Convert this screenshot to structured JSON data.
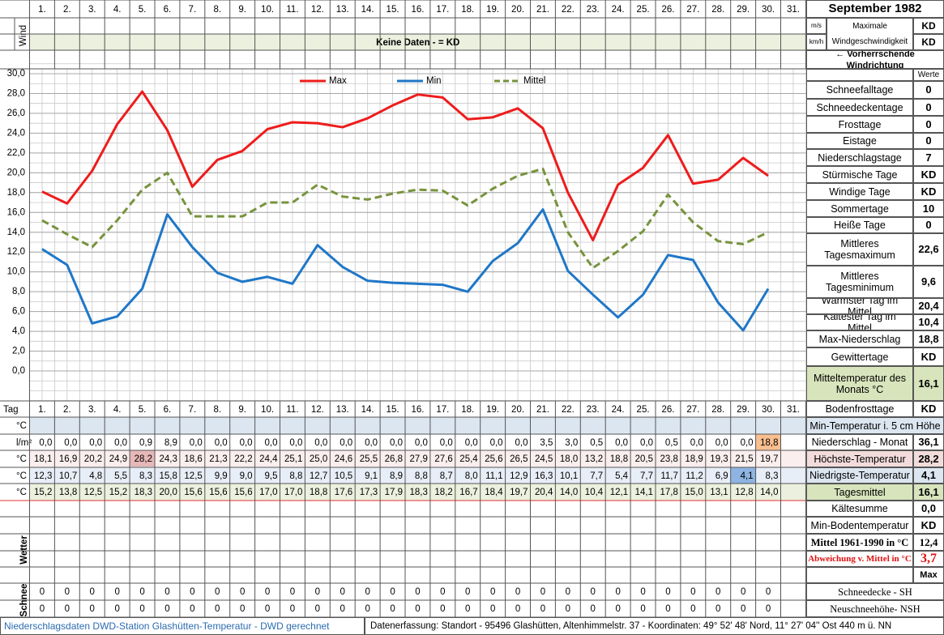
{
  "header": {
    "month": "September 1982"
  },
  "wind": {
    "label": "Wind",
    "no_data": "Keine Daten -  = KD",
    "unit_ms": "m/s",
    "unit_kmh": "km/h",
    "max_label_1": "Maximale",
    "max_label_2": "Windgeschwindigkeit",
    "max_ms": "KD",
    "max_kmh": "KD",
    "direction": "← Vorherrschende Windrichtung"
  },
  "chart_data": {
    "type": "line",
    "categories": [
      "1.",
      "2.",
      "3.",
      "4.",
      "5.",
      "6.",
      "7.",
      "8.",
      "9.",
      "10.",
      "11.",
      "12.",
      "13.",
      "14.",
      "15.",
      "16.",
      "17.",
      "18.",
      "19.",
      "20.",
      "21.",
      "22.",
      "23.",
      "24.",
      "25.",
      "26.",
      "27.",
      "28.",
      "29.",
      "30.",
      "31."
    ],
    "series": [
      {
        "name": "Max",
        "color": "#ee1c1c",
        "dashed": false,
        "values": [
          18.1,
          16.9,
          20.2,
          24.9,
          28.2,
          24.3,
          18.6,
          21.3,
          22.2,
          24.4,
          25.1,
          25.0,
          24.6,
          25.5,
          26.8,
          27.9,
          27.6,
          25.4,
          25.6,
          26.5,
          24.5,
          18.0,
          13.2,
          18.8,
          20.5,
          23.8,
          18.9,
          19.3,
          21.5,
          19.7,
          null
        ],
        "value_labels": [
          "18,1",
          "16,9",
          "20,2",
          "24,9",
          "28,2",
          "24,3",
          "18,6",
          "21,3",
          "22,2",
          "24,4",
          "25,1",
          "25,0",
          "24,6",
          "25,5",
          "26,8",
          "27,9",
          "27,6",
          "25,4",
          "25,6",
          "26,5",
          "24,5",
          "18,0",
          "13,2",
          "18,8",
          "20,5",
          "23,8",
          "18,9",
          "19,3",
          "21,5",
          "19,7",
          null
        ]
      },
      {
        "name": "Min",
        "color": "#1f77c8",
        "dashed": false,
        "values": [
          12.3,
          10.7,
          4.8,
          5.5,
          8.3,
          15.8,
          12.5,
          9.9,
          9.0,
          9.5,
          8.8,
          12.7,
          10.5,
          9.1,
          8.9,
          8.8,
          8.7,
          8.0,
          11.1,
          12.9,
          16.3,
          10.1,
          7.7,
          5.4,
          7.7,
          11.7,
          11.2,
          6.9,
          4.1,
          8.3,
          null
        ],
        "value_labels": [
          "12,3",
          "10,7",
          "4,8",
          "5,5",
          "8,3",
          "15,8",
          "12,5",
          "9,9",
          "9,0",
          "9,5",
          "8,8",
          "12,7",
          "10,5",
          "9,1",
          "8,9",
          "8,8",
          "8,7",
          "8,0",
          "11,1",
          "12,9",
          "16,3",
          "10,1",
          "7,7",
          "5,4",
          "7,7",
          "11,7",
          "11,2",
          "6,9",
          "4,1",
          "8,3",
          null
        ]
      },
      {
        "name": "Mittel",
        "color": "#77933c",
        "dashed": true,
        "values": [
          15.2,
          13.8,
          12.5,
          15.2,
          18.3,
          20.0,
          15.6,
          15.6,
          15.6,
          17.0,
          17.0,
          18.8,
          17.6,
          17.3,
          17.9,
          18.3,
          18.2,
          16.7,
          18.4,
          19.7,
          20.4,
          14.0,
          10.4,
          12.1,
          14.1,
          17.8,
          15.0,
          13.1,
          12.8,
          14.0,
          null
        ],
        "value_labels": [
          "15,2",
          "13,8",
          "12,5",
          "15,2",
          "18,3",
          "20,0",
          "15,6",
          "15,6",
          "15,6",
          "17,0",
          "17,0",
          "18,8",
          "17,6",
          "17,3",
          "17,9",
          "18,3",
          "18,2",
          "16,7",
          "18,4",
          "19,7",
          "20,4",
          "14,0",
          "10,4",
          "12,1",
          "14,1",
          "17,8",
          "15,0",
          "13,1",
          "12,8",
          "14,0",
          null
        ]
      }
    ],
    "ylim": [
      0,
      30
    ],
    "yticks": [
      {
        "value": 0,
        "label": "0,0"
      },
      {
        "value": 2,
        "label": "2,0"
      },
      {
        "value": 4,
        "label": "4,0"
      },
      {
        "value": 6,
        "label": "6,0"
      },
      {
        "value": 8,
        "label": "8,0"
      },
      {
        "value": 10,
        "label": "10,0"
      },
      {
        "value": 12,
        "label": "12,0"
      },
      {
        "value": 14,
        "label": "14,0"
      },
      {
        "value": 16,
        "label": "16,0"
      },
      {
        "value": 18,
        "label": "18,0"
      },
      {
        "value": 20,
        "label": "20,0"
      },
      {
        "value": 22,
        "label": "22,0"
      },
      {
        "value": 24,
        "label": "24,0"
      },
      {
        "value": 26,
        "label": "26,0"
      },
      {
        "value": 28,
        "label": "28,0"
      },
      {
        "value": 30,
        "label": "30,0"
      }
    ],
    "grid": true,
    "legend": "top"
  },
  "stats": {
    "header": "Werte",
    "rows": [
      {
        "label": "Schneefalltage",
        "value": "0"
      },
      {
        "label": "Schneedeckentage",
        "value": "0"
      },
      {
        "label": "Frosttage",
        "value": "0"
      },
      {
        "label": "Eistage",
        "value": "0"
      },
      {
        "label": "Niederschlagstage",
        "value": "7"
      },
      {
        "label": "Stürmische Tage",
        "value": "KD"
      },
      {
        "label": "Windige Tage",
        "value": "KD"
      },
      {
        "label": "Sommertage",
        "value": "10"
      },
      {
        "label": "Heiße Tage",
        "value": "0"
      },
      {
        "label": "Mittleres Tagesmaximum",
        "value": "22,6"
      },
      {
        "label": "Mittleres Tagesminimum",
        "value": "9,6"
      },
      {
        "label": "Wärmster Tag im Mittel",
        "value": "20,4"
      },
      {
        "label": "Kältester Tag im Mittel",
        "value": "10,4"
      },
      {
        "label": "Max-Niederschlag",
        "value": "18,8"
      },
      {
        "label": "Gewittertage",
        "value": "KD"
      },
      {
        "label": "Mitteltemperatur des Monats °C",
        "value": "16,1"
      },
      {
        "label": "Bodenfrosttage",
        "value": "KD"
      }
    ]
  },
  "table": {
    "day_label": "Tag",
    "units": [
      "°C",
      "l/m²",
      "°C",
      "°C",
      "°C"
    ],
    "precipitation": [
      "0,0",
      "0,0",
      "0,0",
      "0,0",
      "0,9",
      "8,9",
      "0,0",
      "0,0",
      "0,0",
      "0,0",
      "0,0",
      "0,0",
      "0,0",
      "0,0",
      "0,0",
      "0,0",
      "0,0",
      "0,0",
      "0,0",
      "0,0",
      "3,5",
      "3,0",
      "0,5",
      "0,0",
      "0,0",
      "0,5",
      "0,0",
      "0,0",
      "0,0",
      "18,8"
    ],
    "weather_label": "Wetter",
    "snow_label": "Schnee",
    "snow_depth": [
      "0",
      "0",
      "0",
      "0",
      "0",
      "0",
      "0",
      "0",
      "0",
      "0",
      "0",
      "0",
      "0",
      "0",
      "0",
      "0",
      "0",
      "0",
      "0",
      "0",
      "0",
      "0",
      "0",
      "0",
      "0",
      "0",
      "0",
      "0",
      "0",
      "0"
    ],
    "new_snow": [
      "0",
      "0",
      "0",
      "0",
      "0",
      "0",
      "0",
      "0",
      "0",
      "0",
      "0",
      "0",
      "0",
      "0",
      "0",
      "0",
      "0",
      "0",
      "0",
      "0",
      "0",
      "0",
      "0",
      "0",
      "0",
      "0",
      "0",
      "0",
      "0",
      "0"
    ],
    "summary": [
      {
        "label": "Min-Temperatur i. 5 cm Höhe"
      },
      {
        "label": "Niederschlag - Monat",
        "value": "36,1"
      },
      {
        "label": "Höchste-Temperatur",
        "value": "28,2"
      },
      {
        "label": "Niedrigste-Temperatur",
        "value": "4,1"
      },
      {
        "label": "Tagesmittel",
        "value": "16,1"
      },
      {
        "label": "Kältesumme",
        "value": "0,0"
      },
      {
        "label": "Min-Bodentemperatur",
        "value": "KD"
      },
      {
        "label": "Mittel 1961-1990 in °C",
        "value": "12,4"
      },
      {
        "label": "Abweichung v. Mittel in °C",
        "value": "3,7"
      },
      {
        "value": "Max"
      },
      {
        "label": "Schneedecke -   SH"
      },
      {
        "label": "Neuschneehöhe- NSH"
      }
    ]
  },
  "footer": {
    "left": "Niederschlagsdaten DWD-Station Glashütten-Temperatur -  DWD gerechnet",
    "right": "Datenerfassung: Standort -  95496 Glashütten, Altenhimmelstr. 37 - Koordinaten:  49° 52' 48' Nord,   11° 27' 04'' Ost   440 m ü. NN"
  }
}
